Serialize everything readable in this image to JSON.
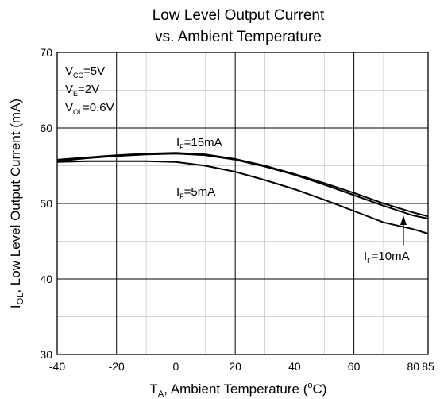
{
  "chart_data": {
    "type": "line",
    "title_line1": "Low Level Output Current",
    "title_line2": "vs. Ambient Temperature",
    "xlabel": {
      "main": "T",
      "sub": "A",
      "rest": ", Ambient Temperature (",
      "sup": "o",
      "unit": "C)"
    },
    "ylabel": {
      "main": "I",
      "sub": "OL",
      "rest": ", Low Level Output Current (mA)"
    },
    "xlim": [
      -40,
      85
    ],
    "ylim": [
      30,
      70
    ],
    "x_ticks": [
      -40,
      -20,
      0,
      20,
      40,
      60,
      80,
      85
    ],
    "x_tick_labels": [
      "-40",
      "-20",
      "0",
      "20",
      "40",
      "60",
      "80",
      "85"
    ],
    "y_ticks": [
      30,
      40,
      50,
      60,
      70
    ],
    "y_tick_labels": [
      "30",
      "40",
      "50",
      "60",
      "70"
    ],
    "major_x_grid": [
      -20,
      20,
      60
    ],
    "major_y_grid": [
      40,
      50,
      60
    ],
    "minor_x_grid": [
      -30,
      -10,
      10,
      30,
      50,
      70
    ],
    "minor_y_grid": [
      35,
      45,
      55,
      65
    ],
    "conditions": [
      {
        "main": "V",
        "sub": "CC",
        "value": "=5V"
      },
      {
        "main": "V",
        "sub": "E",
        "value": "=2V"
      },
      {
        "main": "V",
        "sub": "OL",
        "value": "=0.6V"
      }
    ],
    "series": [
      {
        "name": "I_F=15mA",
        "label_main": "I",
        "label_sub": "F",
        "label_value": "=15mA",
        "x": [
          -40,
          -30,
          -20,
          -10,
          0,
          10,
          20,
          30,
          40,
          50,
          60,
          70,
          80,
          85
        ],
        "values": [
          55.8,
          56.1,
          56.4,
          56.6,
          56.7,
          56.5,
          55.9,
          55.0,
          53.9,
          52.7,
          51.4,
          50.0,
          48.8,
          48.3
        ]
      },
      {
        "name": "I_F=10mA",
        "label_main": "I",
        "label_sub": "F",
        "label_value": "=10mA",
        "x": [
          -40,
          -30,
          -20,
          -10,
          0,
          10,
          20,
          30,
          40,
          50,
          60,
          70,
          80,
          85
        ],
        "values": [
          55.6,
          56.0,
          56.3,
          56.5,
          56.6,
          56.4,
          55.8,
          54.9,
          53.8,
          52.5,
          51.1,
          49.7,
          48.4,
          48.0
        ]
      },
      {
        "name": "I_F=5mA",
        "label_main": "I",
        "label_sub": "F",
        "label_value": "=5mA",
        "x": [
          -40,
          -30,
          -20,
          -10,
          0,
          10,
          20,
          30,
          40,
          50,
          60,
          70,
          80,
          85
        ],
        "values": [
          55.5,
          55.6,
          55.6,
          55.6,
          55.5,
          55.0,
          54.2,
          53.1,
          51.9,
          50.5,
          49.0,
          47.5,
          46.6,
          46.0
        ]
      }
    ]
  }
}
